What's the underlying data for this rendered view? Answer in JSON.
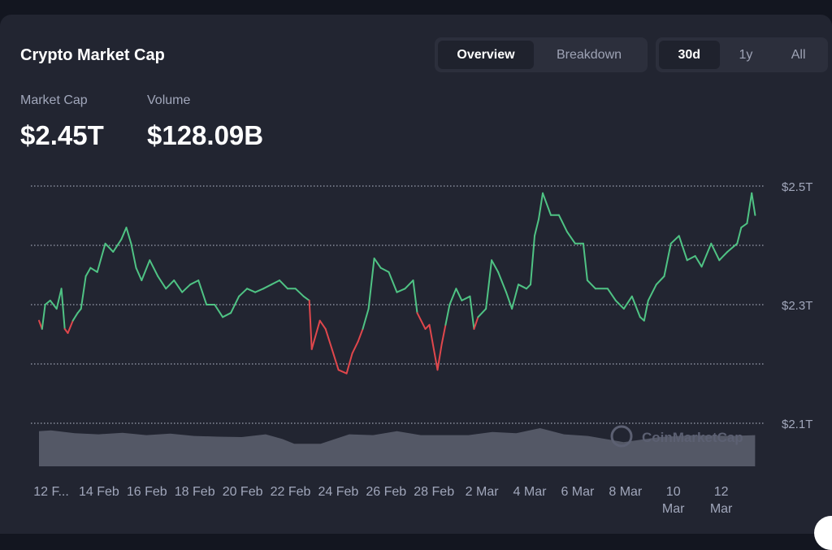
{
  "header": {
    "title": "Crypto Market Cap"
  },
  "view_tabs": [
    {
      "label": "Overview",
      "active": true
    },
    {
      "label": "Breakdown",
      "active": false
    }
  ],
  "range_tabs": [
    {
      "label": "30d",
      "active": true
    },
    {
      "label": "1y",
      "active": false
    },
    {
      "label": "All",
      "active": false
    }
  ],
  "stats": {
    "market_cap_label": "Market Cap",
    "market_cap_value": "$2.45T",
    "volume_label": "Volume",
    "volume_value": "$128.09B"
  },
  "watermark": "CoinMarketCap",
  "colors": {
    "up": "#4fc384",
    "down": "#e0474c",
    "volume": "#545866",
    "grid": "#9aa0b0"
  },
  "chart_data": {
    "type": "line",
    "title": "Crypto Market Cap",
    "xlabel": "",
    "ylabel": "Market Cap",
    "ylim": [
      2.1,
      2.5
    ],
    "yticks": [
      {
        "v": 2.1,
        "label": "$2.1T"
      },
      {
        "v": 2.2,
        "label": ""
      },
      {
        "v": 2.3,
        "label": "$2.3T"
      },
      {
        "v": 2.4,
        "label": ""
      },
      {
        "v": 2.5,
        "label": "$2.5T"
      }
    ],
    "xlim": [
      -0.5,
      29.6
    ],
    "xticks": [
      {
        "d": 0,
        "label": "12 F..."
      },
      {
        "d": 2,
        "label": "14 Feb"
      },
      {
        "d": 4,
        "label": "16 Feb"
      },
      {
        "d": 6,
        "label": "18 Feb"
      },
      {
        "d": 8,
        "label": "20 Feb"
      },
      {
        "d": 10,
        "label": "22 Feb"
      },
      {
        "d": 12,
        "label": "24 Feb"
      },
      {
        "d": 14,
        "label": "26 Feb"
      },
      {
        "d": 16,
        "label": "28 Feb"
      },
      {
        "d": 18,
        "label": "2 Mar"
      },
      {
        "d": 20,
        "label": "4 Mar"
      },
      {
        "d": 22,
        "label": "6 Mar"
      },
      {
        "d": 24,
        "label": "8 Mar"
      },
      {
        "d": 26,
        "label": "10 Mar"
      },
      {
        "d": 28,
        "label": "12 Mar"
      }
    ],
    "baseline": 2.275,
    "x_unit": "days since 12 Feb",
    "y_unit": "trillion USD",
    "price": [
      [
        -0.5,
        2.273
      ],
      [
        -0.37,
        2.259
      ],
      [
        -0.24,
        2.3
      ],
      [
        -0.03,
        2.307
      ],
      [
        0.24,
        2.293
      ],
      [
        0.44,
        2.327
      ],
      [
        0.58,
        2.259
      ],
      [
        0.71,
        2.252
      ],
      [
        0.92,
        2.273
      ],
      [
        1.12,
        2.286
      ],
      [
        1.26,
        2.293
      ],
      [
        1.46,
        2.348
      ],
      [
        1.66,
        2.362
      ],
      [
        1.94,
        2.355
      ],
      [
        2.28,
        2.403
      ],
      [
        2.61,
        2.389
      ],
      [
        2.95,
        2.41
      ],
      [
        3.16,
        2.43
      ],
      [
        3.36,
        2.403
      ],
      [
        3.57,
        2.362
      ],
      [
        3.8,
        2.341
      ],
      [
        4.14,
        2.375
      ],
      [
        4.48,
        2.348
      ],
      [
        4.82,
        2.327
      ],
      [
        5.16,
        2.341
      ],
      [
        5.5,
        2.321
      ],
      [
        5.84,
        2.334
      ],
      [
        6.18,
        2.341
      ],
      [
        6.52,
        2.3
      ],
      [
        6.86,
        2.3
      ],
      [
        7.2,
        2.279
      ],
      [
        7.54,
        2.286
      ],
      [
        7.88,
        2.314
      ],
      [
        8.22,
        2.327
      ],
      [
        8.56,
        2.321
      ],
      [
        8.9,
        2.327
      ],
      [
        9.24,
        2.334
      ],
      [
        9.58,
        2.341
      ],
      [
        9.92,
        2.327
      ],
      [
        10.25,
        2.327
      ],
      [
        10.59,
        2.314
      ],
      [
        10.83,
        2.307
      ],
      [
        10.93,
        2.225
      ],
      [
        11.27,
        2.273
      ],
      [
        11.51,
        2.259
      ],
      [
        11.78,
        2.225
      ],
      [
        12.05,
        2.19
      ],
      [
        12.39,
        2.184
      ],
      [
        12.63,
        2.218
      ],
      [
        12.87,
        2.238
      ],
      [
        13.07,
        2.259
      ],
      [
        13.31,
        2.293
      ],
      [
        13.55,
        2.378
      ],
      [
        13.82,
        2.362
      ],
      [
        14.16,
        2.355
      ],
      [
        14.5,
        2.321
      ],
      [
        14.84,
        2.327
      ],
      [
        15.18,
        2.341
      ],
      [
        15.35,
        2.286
      ],
      [
        15.69,
        2.259
      ],
      [
        15.86,
        2.266
      ],
      [
        16.2,
        2.19
      ],
      [
        16.37,
        2.232
      ],
      [
        16.54,
        2.266
      ],
      [
        16.71,
        2.3
      ],
      [
        16.98,
        2.327
      ],
      [
        17.22,
        2.307
      ],
      [
        17.56,
        2.314
      ],
      [
        17.73,
        2.259
      ],
      [
        17.9,
        2.279
      ],
      [
        18.23,
        2.293
      ],
      [
        18.47,
        2.375
      ],
      [
        18.74,
        2.355
      ],
      [
        19.08,
        2.321
      ],
      [
        19.32,
        2.293
      ],
      [
        19.59,
        2.334
      ],
      [
        19.93,
        2.327
      ],
      [
        20.1,
        2.334
      ],
      [
        20.27,
        2.416
      ],
      [
        20.44,
        2.444
      ],
      [
        20.61,
        2.488
      ],
      [
        20.95,
        2.451
      ],
      [
        21.29,
        2.451
      ],
      [
        21.63,
        2.423
      ],
      [
        21.97,
        2.403
      ],
      [
        22.31,
        2.403
      ],
      [
        22.48,
        2.341
      ],
      [
        22.82,
        2.327
      ],
      [
        23.33,
        2.327
      ],
      [
        23.67,
        2.307
      ],
      [
        24.01,
        2.293
      ],
      [
        24.35,
        2.314
      ],
      [
        24.69,
        2.279
      ],
      [
        24.86,
        2.273
      ],
      [
        25.03,
        2.307
      ],
      [
        25.37,
        2.334
      ],
      [
        25.7,
        2.348
      ],
      [
        25.98,
        2.403
      ],
      [
        26.32,
        2.416
      ],
      [
        26.66,
        2.375
      ],
      [
        27.0,
        2.382
      ],
      [
        27.27,
        2.364
      ],
      [
        27.67,
        2.403
      ],
      [
        28.01,
        2.375
      ],
      [
        28.35,
        2.389
      ],
      [
        28.76,
        2.403
      ],
      [
        28.93,
        2.43
      ],
      [
        29.17,
        2.437
      ],
      [
        29.37,
        2.488
      ],
      [
        29.51,
        2.451
      ]
    ],
    "volume_relative": [
      [
        -0.5,
        90
      ],
      [
        0,
        92
      ],
      [
        1,
        85
      ],
      [
        2,
        82
      ],
      [
        3,
        86
      ],
      [
        4,
        80
      ],
      [
        5,
        84
      ],
      [
        6,
        78
      ],
      [
        7,
        76
      ],
      [
        8,
        75
      ],
      [
        9,
        82
      ],
      [
        9.7,
        70
      ],
      [
        10.2,
        58
      ],
      [
        11.3,
        58
      ],
      [
        12.5,
        82
      ],
      [
        13.5,
        80
      ],
      [
        14.5,
        90
      ],
      [
        15.5,
        80
      ],
      [
        16.5,
        80
      ],
      [
        17.5,
        80
      ],
      [
        18.5,
        88
      ],
      [
        19.5,
        85
      ],
      [
        20.5,
        98
      ],
      [
        21.5,
        82
      ],
      [
        22.5,
        78
      ],
      [
        24,
        62
      ],
      [
        25.5,
        75
      ],
      [
        27,
        80
      ],
      [
        28.5,
        78
      ],
      [
        29.51,
        80
      ]
    ]
  }
}
